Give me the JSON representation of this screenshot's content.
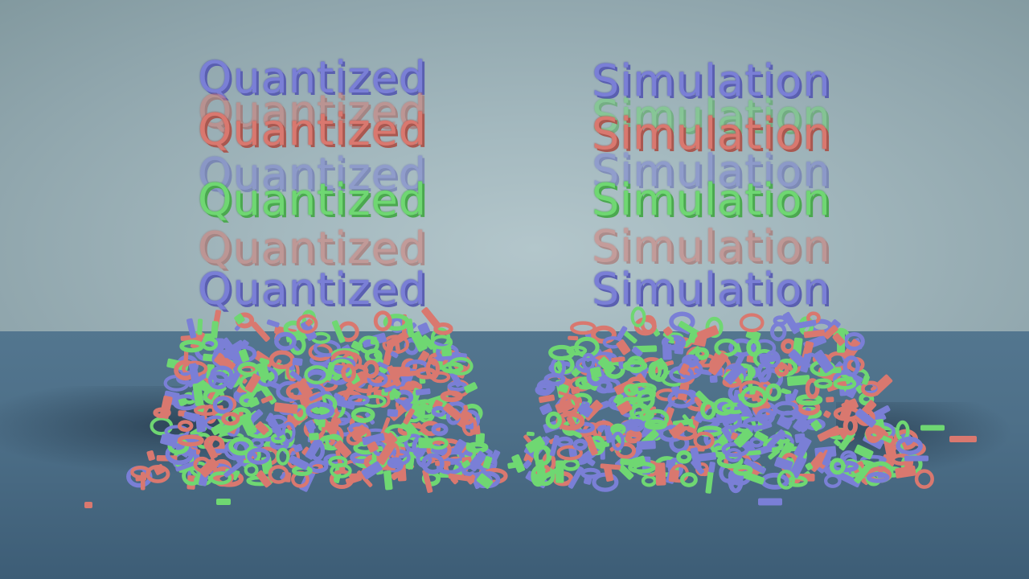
{
  "scene": {
    "left_word": "Quantized",
    "right_word": "Simulation",
    "particle_colors": {
      "blue": "#7a7fd6",
      "red": "#d9786f",
      "green": "#6fd772"
    },
    "wall_color": "#a9bcc2",
    "floor_color": "#4f728b"
  }
}
